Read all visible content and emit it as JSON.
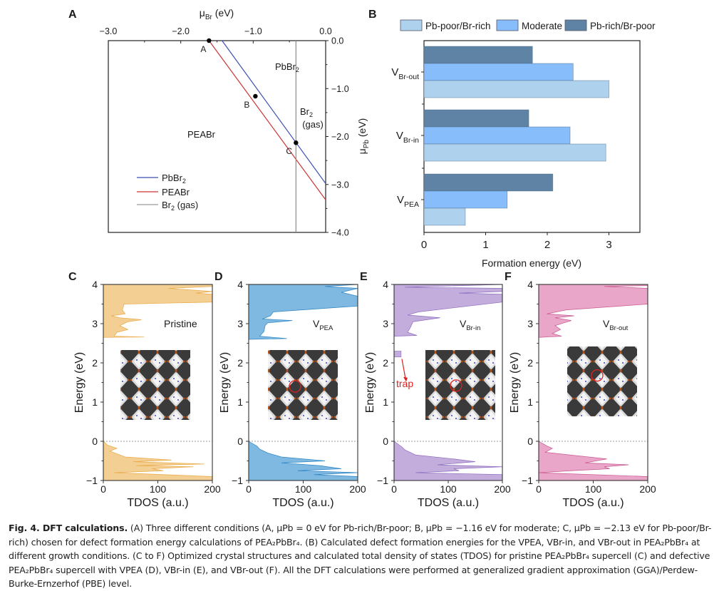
{
  "figure": {
    "panel_labels": {
      "A": "A",
      "B": "B",
      "C": "C",
      "D": "D",
      "E": "E",
      "F": "F"
    },
    "caption": {
      "lead": "Fig. 4. DFT calculations.",
      "text": " (A) Three different conditions (A, μPb = 0 eV for Pb-rich/Br-poor; B, μPb = −1.16 eV for moderate; C, μPb = −2.13 eV for Pb-poor/Br-rich) chosen for defect formation energy calculations of PEA₂PbBr₄. (B) Calculated defect formation energies for the VPEA, VBr-in, and VBr-out in PEA₂PbBr₄ at different growth conditions. (C to F) Optimized crystal structures and calculated total density of states (TDOS) for pristine PEA₂PbBr₄ supercell (C) and defective PEA₂PbBr₄ supercell with VPEA (D), VBr-in (E), and VBr-out (F). All the DFT calculations were performed at generalized gradient approximation (GGA)/Perdew-Burke-Ernzerhof (PBE) level."
    }
  },
  "chart_data": [
    {
      "panel": "A",
      "type": "line",
      "title": "",
      "xlabel": "μBr (eV)",
      "ylabel": "μPb (eV)",
      "xlim": [
        -3.0,
        0.0
      ],
      "ylim": [
        -4.0,
        0.0
      ],
      "xticks": [
        "-3.0",
        "-2.0",
        "-1.0",
        "0.0"
      ],
      "yticks": [
        "0.0",
        "-1.0",
        "-2.0",
        "-3.0",
        "-4.0"
      ],
      "x_axis_position": "top",
      "y_axis_position": "right",
      "series": [
        {
          "name": "PbBr2",
          "color": "#3d4fb5",
          "points": [
            [
              -1.43,
              0.0
            ],
            [
              0.0,
              -2.98
            ]
          ]
        },
        {
          "name": "PEABr",
          "color": "#cc3333",
          "points": [
            [
              -1.61,
              0.0
            ],
            [
              0.0,
              -3.32
            ]
          ]
        },
        {
          "name": "Br2 (gas)",
          "color": "#8a8a8a",
          "points": [
            [
              -0.41,
              0.0
            ],
            [
              -0.41,
              -4.0
            ]
          ]
        }
      ],
      "points": [
        {
          "label": "A",
          "x": -1.61,
          "y": 0.0
        },
        {
          "label": "B",
          "x": -0.97,
          "y": -1.16
        },
        {
          "label": "C",
          "x": -0.41,
          "y": -2.13
        }
      ],
      "region_labels": [
        "PbBr2",
        "PEABr",
        "Br2",
        "(gas)"
      ],
      "legend": {
        "position": "bottom-left",
        "entries": [
          "PbBr2",
          "PEABr",
          "Br2 (gas)"
        ]
      }
    },
    {
      "panel": "B",
      "type": "bar",
      "orientation": "horizontal",
      "title": "",
      "xlabel": "Formation energy (eV)",
      "ylabel": "",
      "xlim": [
        0,
        3.5
      ],
      "xticks": [
        "0",
        "1",
        "2",
        "3"
      ],
      "categories": [
        "VBr-out",
        "VBr-in",
        "VPEA"
      ],
      "category_labels": [
        {
          "main": "V",
          "sub": "Br-out"
        },
        {
          "main": "V",
          "sub": "Br-in"
        },
        {
          "main": "V",
          "sub": "PEA"
        }
      ],
      "series": [
        {
          "name": "Pb-rich/Br-poor",
          "color": "#5f83a5",
          "values": [
            1.76,
            1.7,
            2.09
          ]
        },
        {
          "name": "Moderate",
          "color": "#87bdfa",
          "values": [
            2.42,
            2.37,
            1.35
          ]
        },
        {
          "name": "Pb-poor/Br-rich",
          "color": "#aed2ee",
          "values": [
            3.0,
            2.95,
            0.67
          ]
        }
      ],
      "legend": {
        "position": "top",
        "entries": [
          "Pb-poor/Br-rich",
          "Moderate",
          "Pb-rich/Br-poor"
        ]
      }
    },
    {
      "panel": "C",
      "type": "area",
      "label_main": "Pristine",
      "label_sub": "",
      "xlabel": "TDOS (a.u.)",
      "ylabel": "Energy (eV)",
      "xlim": [
        0,
        200
      ],
      "ylim": [
        -1,
        4
      ],
      "xticks": [
        "0",
        "100",
        "200"
      ],
      "yticks": [
        "-1",
        "0",
        "1",
        "2",
        "3",
        "4"
      ],
      "fill": "#f4cf93",
      "line": "#e9aa48",
      "conduction": [
        [
          2.65,
          0
        ],
        [
          2.66,
          75
        ],
        [
          2.68,
          20
        ],
        [
          2.78,
          25
        ],
        [
          2.85,
          45
        ],
        [
          2.95,
          30
        ],
        [
          3.05,
          45
        ],
        [
          3.1,
          70
        ],
        [
          3.15,
          30
        ],
        [
          3.2,
          15
        ],
        [
          3.25,
          40
        ],
        [
          3.35,
          35
        ],
        [
          3.5,
          38
        ],
        [
          3.55,
          200
        ],
        [
          3.75,
          200
        ],
        [
          3.78,
          170
        ],
        [
          3.82,
          200
        ],
        [
          3.9,
          120
        ],
        [
          3.95,
          200
        ],
        [
          4.0,
          200
        ]
      ],
      "valence": [
        [
          0,
          0
        ],
        [
          -0.1,
          8
        ],
        [
          -0.18,
          25
        ],
        [
          -0.25,
          12
        ],
        [
          -0.4,
          40
        ],
        [
          -0.48,
          125
        ],
        [
          -0.52,
          55
        ],
        [
          -0.58,
          185
        ],
        [
          -0.62,
          60
        ],
        [
          -0.65,
          165
        ],
        [
          -0.7,
          90
        ],
        [
          -0.75,
          110
        ],
        [
          -0.8,
          20
        ],
        [
          -0.9,
          200
        ],
        [
          -1.0,
          200
        ]
      ],
      "trap": null
    },
    {
      "panel": "D",
      "type": "area",
      "label_main": "V",
      "label_sub": "PEA",
      "xlabel": "TDOS (a.u.)",
      "ylabel": "Energy (eV)",
      "xlim": [
        0,
        200
      ],
      "ylim": [
        -1,
        4
      ],
      "xticks": [
        "0",
        "100",
        "200"
      ],
      "yticks": [
        "-1",
        "0",
        "1",
        "2",
        "3",
        "4"
      ],
      "fill": "#7fb9e2",
      "line": "#2f86c4",
      "conduction": [
        [
          2.6,
          0
        ],
        [
          2.62,
          70
        ],
        [
          2.68,
          20
        ],
        [
          2.8,
          28
        ],
        [
          2.95,
          30
        ],
        [
          3.02,
          35
        ],
        [
          3.08,
          80
        ],
        [
          3.12,
          25
        ],
        [
          3.2,
          40
        ],
        [
          3.3,
          45
        ],
        [
          3.45,
          200
        ],
        [
          3.7,
          200
        ],
        [
          3.8,
          170
        ],
        [
          3.9,
          200
        ],
        [
          3.95,
          140
        ],
        [
          4.0,
          200
        ]
      ],
      "valence": [
        [
          0,
          0
        ],
        [
          -0.12,
          15
        ],
        [
          -0.2,
          20
        ],
        [
          -0.3,
          35
        ],
        [
          -0.4,
          60
        ],
        [
          -0.5,
          140
        ],
        [
          -0.55,
          60
        ],
        [
          -0.62,
          130
        ],
        [
          -0.7,
          170
        ],
        [
          -0.75,
          90
        ],
        [
          -0.8,
          200
        ],
        [
          -0.85,
          120
        ],
        [
          -0.9,
          200
        ],
        [
          -1.0,
          200
        ]
      ],
      "trap": null
    },
    {
      "panel": "E",
      "type": "area",
      "label_main": "V",
      "label_sub": "Br-in",
      "xlabel": "TDOS (a.u.)",
      "ylabel": "Energy (eV)",
      "xlim": [
        0,
        200
      ],
      "ylim": [
        -1,
        4
      ],
      "xticks": [
        "0",
        "100",
        "200"
      ],
      "yticks": [
        "-1",
        "0",
        "1",
        "2",
        "3",
        "4"
      ],
      "fill": "#c3addc",
      "line": "#8e6cbf",
      "conduction": [
        [
          2.68,
          0
        ],
        [
          2.7,
          42
        ],
        [
          2.78,
          25
        ],
        [
          2.9,
          30
        ],
        [
          3.05,
          35
        ],
        [
          3.15,
          85
        ],
        [
          3.22,
          25
        ],
        [
          3.3,
          45
        ],
        [
          3.55,
          200
        ],
        [
          3.75,
          200
        ],
        [
          3.78,
          120
        ],
        [
          3.82,
          200
        ],
        [
          3.9,
          200
        ],
        [
          3.93,
          20
        ],
        [
          4.0,
          200
        ]
      ],
      "valence": [
        [
          0,
          0
        ],
        [
          -0.15,
          15
        ],
        [
          -0.22,
          20
        ],
        [
          -0.35,
          40
        ],
        [
          -0.45,
          110
        ],
        [
          -0.52,
          150
        ],
        [
          -0.6,
          80
        ],
        [
          -0.65,
          200
        ],
        [
          -0.7,
          110
        ],
        [
          -0.75,
          120
        ],
        [
          -0.8,
          40
        ],
        [
          -0.85,
          200
        ],
        [
          -1.0,
          200
        ]
      ],
      "trap": {
        "from": 2.15,
        "to": 2.3,
        "value": 13,
        "label": "trap",
        "color": "#e02020"
      }
    },
    {
      "panel": "F",
      "type": "area",
      "label_main": "V",
      "label_sub": "Br-out",
      "xlabel": "TDOS (a.u.)",
      "ylabel": "Energy (eV)",
      "xlim": [
        0,
        200
      ],
      "ylim": [
        -1,
        4
      ],
      "xticks": [
        "0",
        "100",
        "200"
      ],
      "yticks": [
        "-1",
        "0",
        "1",
        "2",
        "3",
        "4"
      ],
      "fill": "#e9a6c8",
      "line": "#c9578f",
      "conduction": [
        [
          2.65,
          0
        ],
        [
          2.68,
          42
        ],
        [
          2.75,
          25
        ],
        [
          2.85,
          40
        ],
        [
          2.95,
          30
        ],
        [
          3.08,
          60
        ],
        [
          3.15,
          30
        ],
        [
          3.2,
          65
        ],
        [
          3.25,
          15
        ],
        [
          3.35,
          50
        ],
        [
          3.5,
          200
        ],
        [
          3.75,
          200
        ],
        [
          3.9,
          200
        ],
        [
          3.95,
          120
        ],
        [
          3.97,
          200
        ],
        [
          4.0,
          200
        ]
      ],
      "valence": [
        [
          0,
          0
        ],
        [
          -0.12,
          15
        ],
        [
          -0.18,
          25
        ],
        [
          -0.28,
          12
        ],
        [
          -0.45,
          125
        ],
        [
          -0.55,
          85
        ],
        [
          -0.6,
          165
        ],
        [
          -0.65,
          120
        ],
        [
          -0.7,
          130
        ],
        [
          -0.75,
          60
        ],
        [
          -0.8,
          0
        ],
        [
          -0.9,
          200
        ],
        [
          -1.0,
          200
        ]
      ],
      "trap": null
    }
  ]
}
